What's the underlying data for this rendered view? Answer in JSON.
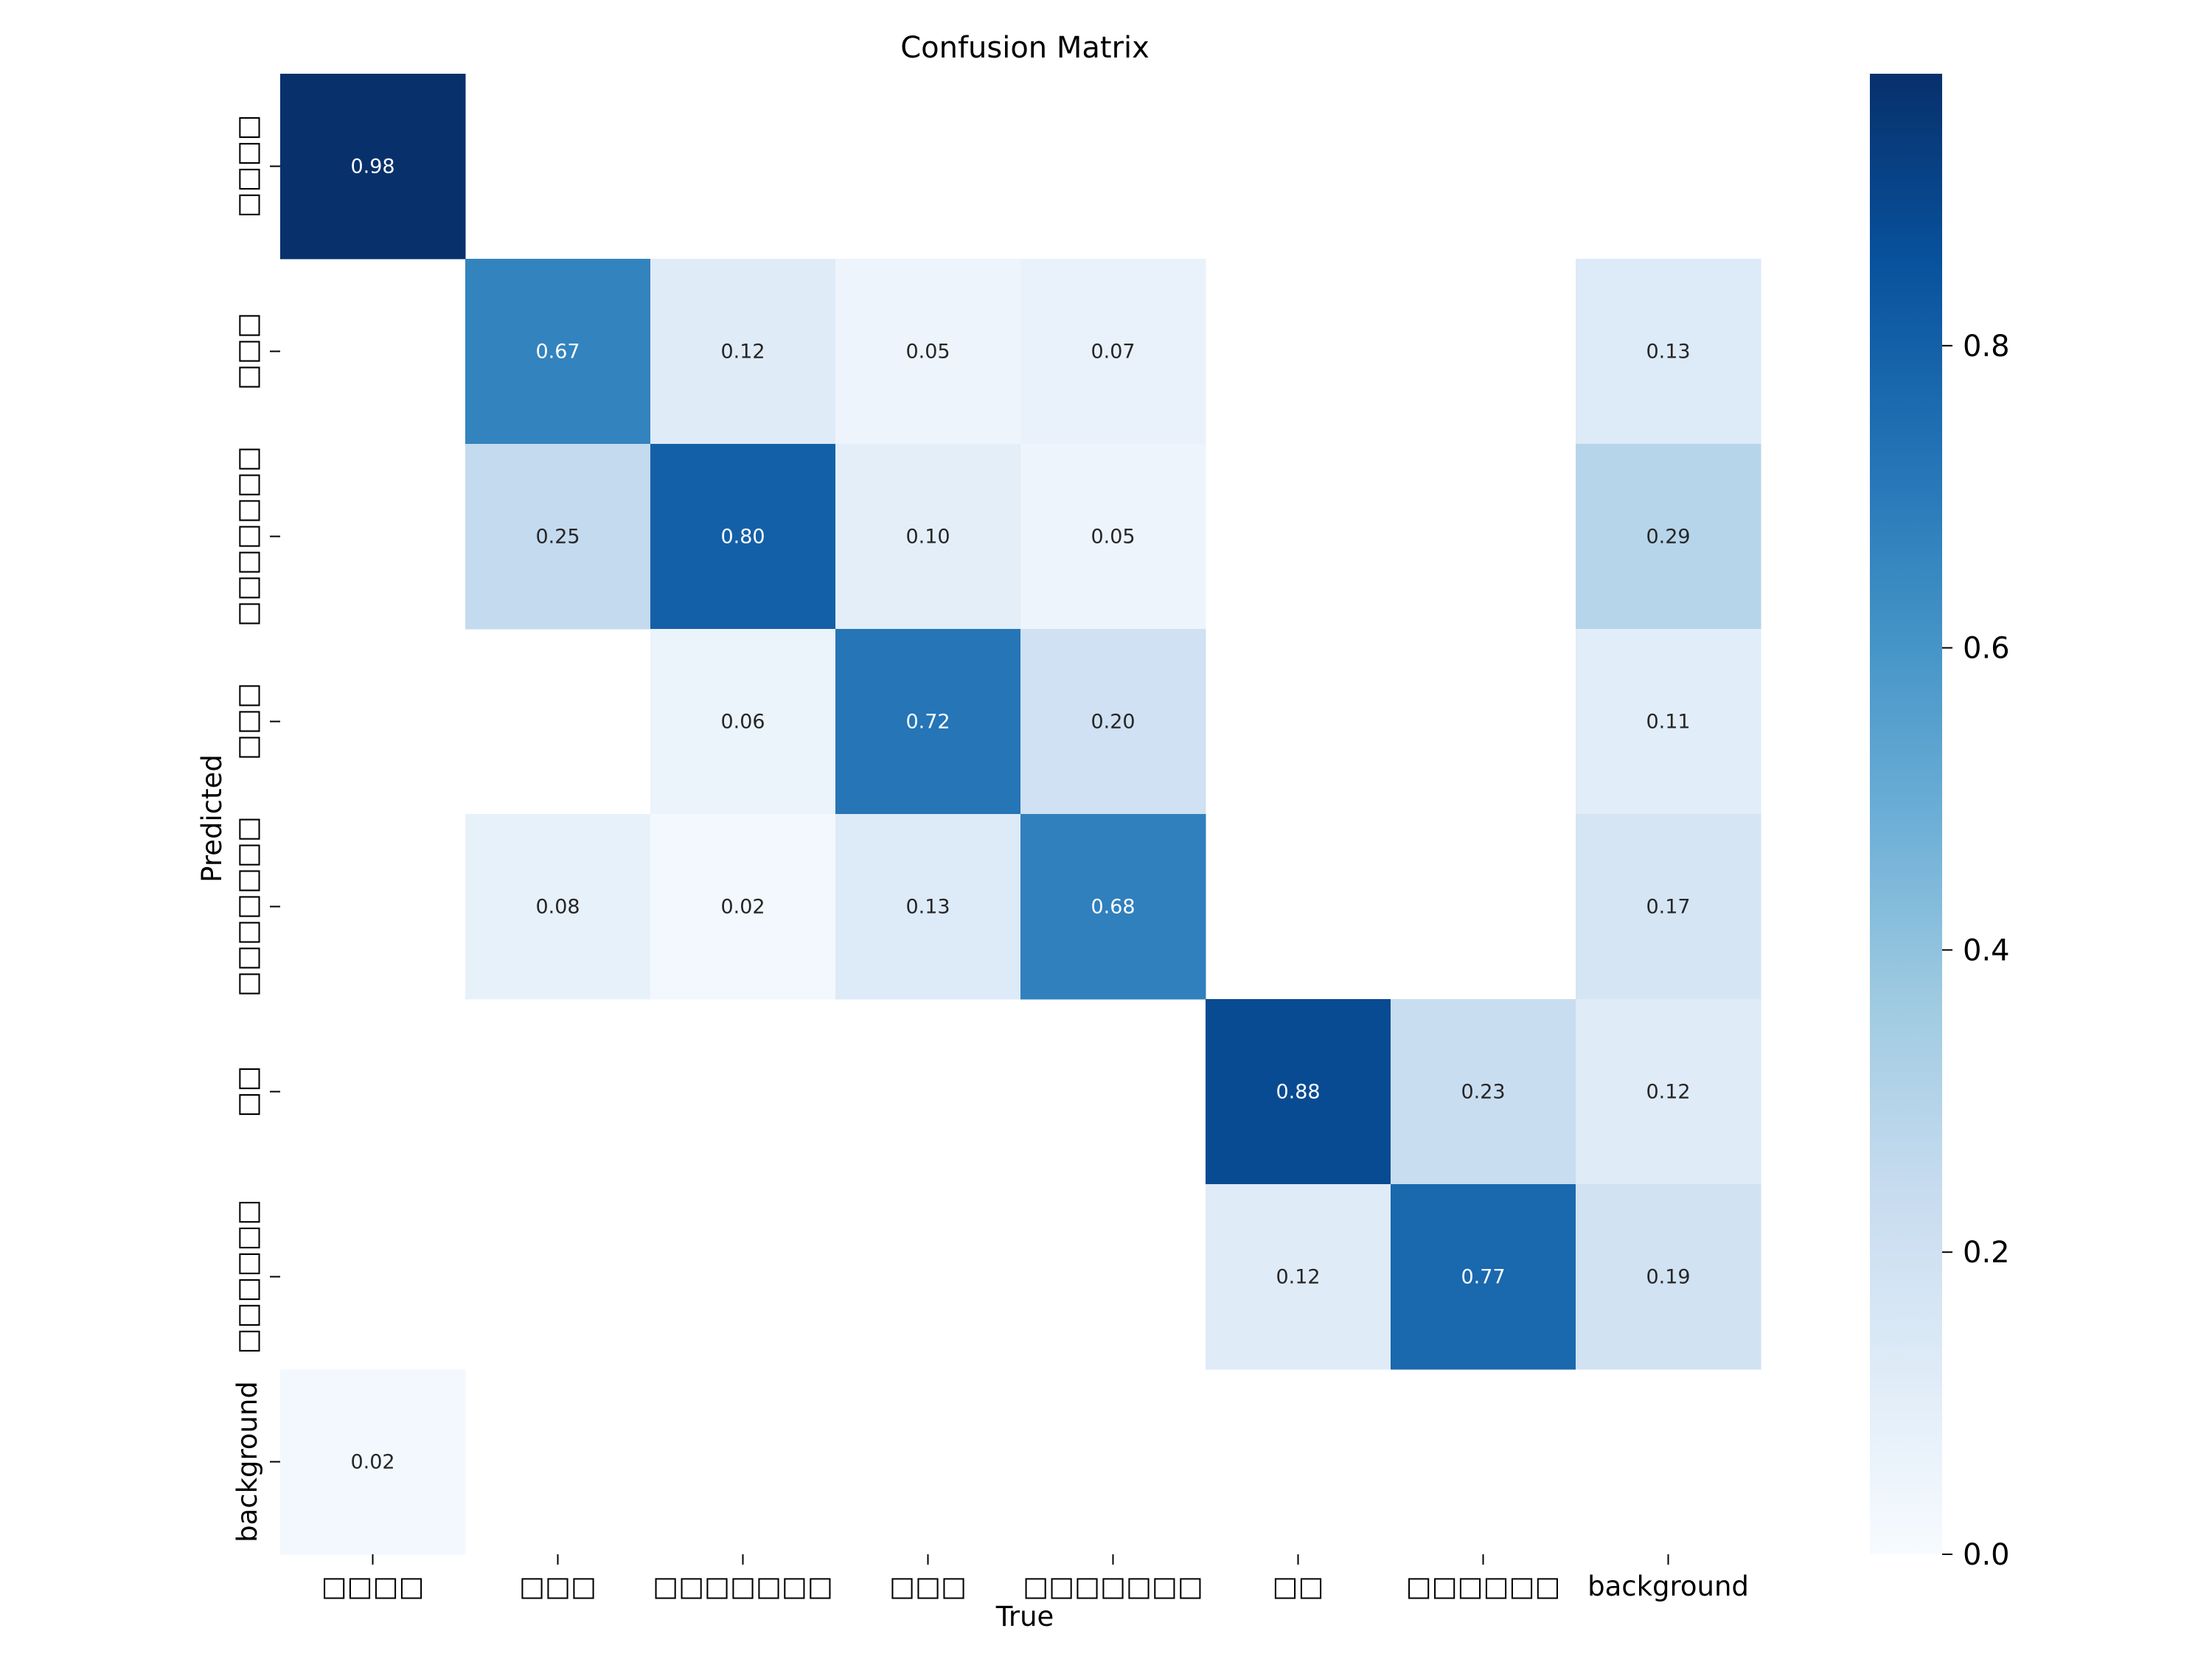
{
  "chart_data": {
    "type": "heatmap",
    "title": "Confusion Matrix",
    "xlabel": "True",
    "ylabel": "Predicted",
    "categories": [
      "□□□□",
      "□□□",
      "□□□□□□□",
      "□□□",
      "□□□□□□□",
      "□□",
      "□□□□□□",
      "background"
    ],
    "cmap": "Blues",
    "vmin": 0.0,
    "vmax": 0.98,
    "colorbar_ticks": [
      "0.0",
      "0.2",
      "0.4",
      "0.6",
      "0.8"
    ],
    "matrix": [
      [
        0.98,
        null,
        null,
        null,
        null,
        null,
        null,
        null
      ],
      [
        null,
        0.67,
        0.12,
        0.05,
        0.07,
        null,
        null,
        0.13
      ],
      [
        null,
        0.25,
        0.8,
        0.1,
        0.05,
        null,
        null,
        0.29
      ],
      [
        null,
        null,
        0.06,
        0.72,
        0.2,
        null,
        null,
        0.11
      ],
      [
        null,
        0.08,
        0.02,
        0.13,
        0.68,
        null,
        null,
        0.17
      ],
      [
        null,
        null,
        null,
        null,
        null,
        0.88,
        0.23,
        0.12
      ],
      [
        null,
        null,
        null,
        null,
        null,
        0.12,
        0.77,
        0.19
      ],
      [
        0.02,
        null,
        null,
        null,
        null,
        null,
        null,
        null
      ]
    ]
  }
}
